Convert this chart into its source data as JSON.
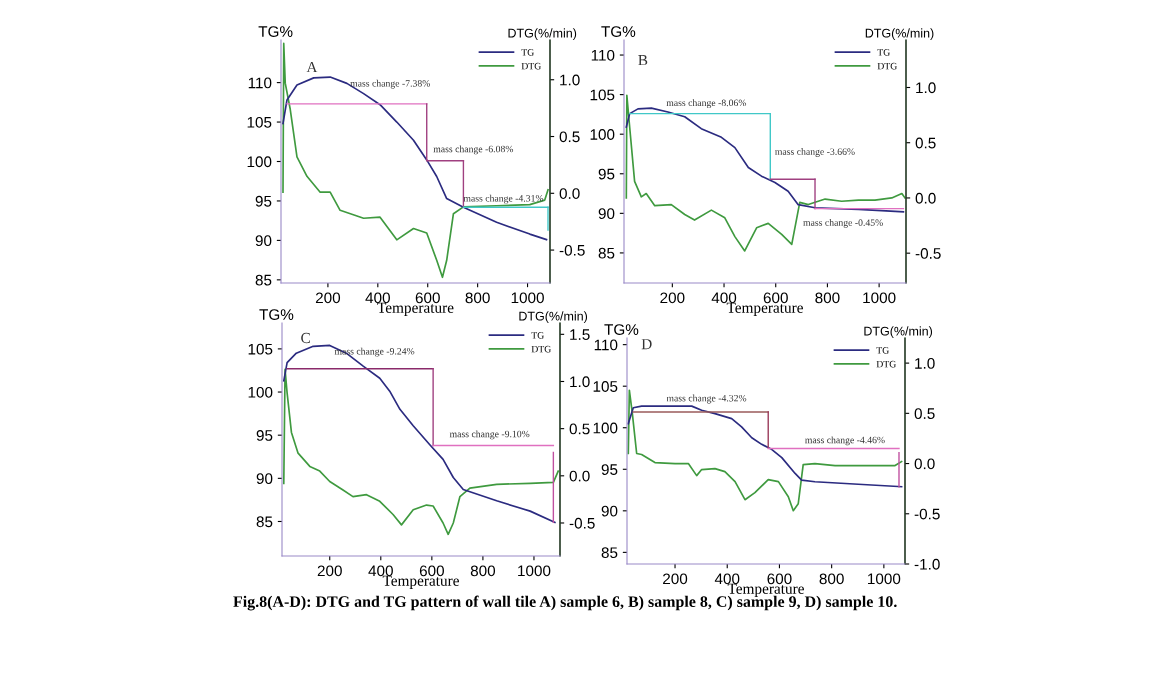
{
  "chart_data": [
    {
      "type": "line",
      "ylabel": "TG%",
      "y2label": "DTG(%/min)",
      "xlabel": "Temperature",
      "legend": "top right",
      "xlim": [
        12,
        1090
      ],
      "xticks": [
        200,
        400,
        600,
        800,
        1000
      ],
      "ylim": [
        84.6,
        115.4
      ],
      "yticks": [
        85,
        90,
        95,
        100,
        105,
        110
      ],
      "y2lim": [
        -0.79,
        1.35
      ],
      "y2ticks": [
        {
          "value": -0.5,
          "label": "-0.5"
        },
        {
          "value": 0,
          "label": "0.0"
        },
        {
          "value": 0.5,
          "label": "0.5"
        },
        {
          "value": 1,
          "label": "1.0"
        }
      ],
      "series": [
        {
          "name": "TG",
          "color": "#2b2b80",
          "x": [
            20,
            36,
            76,
            143,
            209,
            276,
            343,
            409,
            476,
            543,
            596,
            636,
            676,
            743,
            876,
            1009,
            1076
          ],
          "values": [
            104.8,
            107.8,
            109.7,
            110.6,
            110.7,
            109.9,
            108.6,
            107.2,
            105.0,
            102.7,
            100.2,
            98.1,
            95.3,
            94.2,
            92.3,
            90.8,
            90.1
          ]
        },
        {
          "name": "DTG",
          "color": "#3f9a3f",
          "axis": "y2",
          "x": [
            20,
            23,
            29,
            49,
            76,
            116,
            169,
            209,
            249,
            343,
            409,
            476,
            543,
            596,
            636,
            659,
            676,
            703,
            743,
            876,
            1009,
            1069,
            1082
          ],
          "values": [
            0.01,
            1.32,
            0.97,
            0.74,
            0.32,
            0.15,
            0.01,
            0.01,
            -0.15,
            -0.22,
            -0.21,
            -0.41,
            -0.31,
            -0.35,
            -0.59,
            -0.74,
            -0.59,
            -0.18,
            -0.12,
            -0.11,
            -0.1,
            -0.06,
            0.03
          ]
        },
        {
          "color": "#e070c0",
          "x": [
            36,
            596
          ],
          "values": [
            107.3,
            107.3
          ]
        },
        {
          "color": "#a04080",
          "x": [
            596,
            596
          ],
          "values": [
            107.3,
            100.2
          ]
        },
        {
          "color": "#a04080",
          "x": [
            596,
            743
          ],
          "values": [
            100.1,
            100.1
          ]
        },
        {
          "color": "#a04080",
          "x": [
            743,
            743
          ],
          "values": [
            100.1,
            94.2
          ]
        },
        {
          "color": "#40c8c8",
          "x": [
            743,
            1082
          ],
          "values": [
            94.2,
            94.2
          ]
        },
        {
          "color": "#40c8c8",
          "x": [
            1082,
            1082
          ],
          "values": [
            94.2,
            91.3
          ]
        }
      ],
      "annotations": [
        "A",
        "mass change -7.38%",
        "mass change -6.08%",
        "mass change -4.31%"
      ]
    },
    {
      "type": "line",
      "ylabel": "TG%",
      "y2label": "DTG(%/min)",
      "xlabel": "Temperature",
      "legend": "top right",
      "xlim": [
        13,
        1104
      ],
      "xticks": [
        200,
        400,
        600,
        800,
        1000
      ],
      "ylim": [
        81.2,
        111.9
      ],
      "yticks": [
        85,
        90,
        95,
        100,
        105,
        110
      ],
      "y2lim": [
        -0.77,
        1.43
      ],
      "y2ticks": [
        {
          "value": -0.5,
          "label": "-0.5"
        },
        {
          "value": 0,
          "label": "0.0"
        },
        {
          "value": 0.5,
          "label": "0.5"
        },
        {
          "value": 1,
          "label": "1.0"
        }
      ],
      "series": [
        {
          "name": "TG",
          "color": "#2b2b80",
          "x": [
            22,
            35,
            67,
            119,
            183,
            248,
            312,
            390,
            442,
            494,
            545,
            597,
            648,
            687,
            752,
            920,
            1094
          ],
          "values": [
            100.9,
            102.6,
            103.2,
            103.3,
            102.8,
            102.2,
            100.7,
            99.6,
            98.3,
            95.8,
            94.7,
            93.9,
            92.8,
            91.1,
            90.7,
            90.5,
            90.2
          ]
        },
        {
          "name": "DTG",
          "color": "#3f9a3f",
          "axis": "y2",
          "x": [
            22,
            24,
            35,
            54,
            80,
            99,
            132,
            196,
            248,
            286,
            351,
            403,
            442,
            480,
            526,
            571,
            623,
            662,
            693,
            726,
            791,
            855,
            920,
            984,
            1049,
            1088,
            1100
          ],
          "values": [
            0.0,
            0.93,
            0.64,
            0.15,
            0.01,
            0.04,
            -0.07,
            -0.06,
            -0.15,
            -0.2,
            -0.11,
            -0.18,
            -0.35,
            -0.48,
            -0.27,
            -0.23,
            -0.33,
            -0.42,
            -0.04,
            -0.06,
            -0.01,
            -0.03,
            -0.02,
            -0.02,
            0.0,
            0.04,
            0.0
          ]
        },
        {
          "color": "#40c8c8",
          "x": [
            35,
            579
          ],
          "values": [
            102.6,
            102.6
          ]
        },
        {
          "color": "#40c8c8",
          "x": [
            579,
            579
          ],
          "values": [
            102.6,
            94.3
          ]
        },
        {
          "color": "#a04080",
          "x": [
            579,
            752
          ],
          "values": [
            94.3,
            94.3
          ]
        },
        {
          "color": "#a04080",
          "x": [
            752,
            752
          ],
          "values": [
            94.3,
            90.6
          ]
        },
        {
          "color": "#e070c0",
          "x": [
            752,
            1094
          ],
          "values": [
            90.6,
            90.6
          ]
        }
      ],
      "annotations": [
        "B",
        "mass change -8.06%",
        "mass change -3.66%",
        "mass change -0.45%"
      ]
    },
    {
      "type": "line",
      "ylabel": "TG%",
      "y2label": "DTG(%/min)",
      "xlabel": "Temperature",
      "legend": "top right",
      "xlim": [
        13,
        1102
      ],
      "xticks": [
        200,
        400,
        600,
        800,
        1000
      ],
      "ylim": [
        81.0,
        108.0
      ],
      "yticks": [
        85,
        90,
        95,
        100,
        105
      ],
      "y2lim": [
        -0.85,
        1.62
      ],
      "y2ticks": [
        {
          "value": -0.5,
          "label": "-0.5"
        },
        {
          "value": 0,
          "label": "0.0"
        },
        {
          "value": 0.5,
          "label": "0.5"
        },
        {
          "value": 1,
          "label": "1.0"
        },
        {
          "value": 1.5,
          "label": "1.5"
        }
      ],
      "series": [
        {
          "name": "TG",
          "color": "#2b2b80",
          "x": [
            20,
            33,
            69,
            135,
            200,
            265,
            331,
            396,
            435,
            475,
            527,
            592,
            644,
            684,
            723,
            854,
            985,
            1082
          ],
          "values": [
            101.3,
            103.4,
            104.5,
            105.3,
            105.4,
            104.5,
            103.0,
            101.6,
            100.1,
            98.0,
            96.1,
            93.9,
            92.2,
            90.1,
            88.7,
            87.4,
            86.2,
            84.9
          ]
        },
        {
          "name": "DTG",
          "color": "#3f9a3f",
          "axis": "y2",
          "x": [
            20,
            25,
            33,
            50,
            76,
            122,
            161,
            200,
            252,
            291,
            344,
            396,
            448,
            481,
            527,
            579,
            605,
            644,
            664,
            684,
            710,
            749,
            854,
            985,
            1076,
            1095
          ],
          "values": [
            -0.08,
            1.13,
            0.88,
            0.46,
            0.24,
            0.1,
            0.05,
            -0.06,
            -0.15,
            -0.22,
            -0.2,
            -0.27,
            -0.41,
            -0.52,
            -0.36,
            -0.31,
            -0.32,
            -0.5,
            -0.62,
            -0.5,
            -0.22,
            -0.13,
            -0.09,
            -0.08,
            -0.07,
            0.05
          ]
        },
        {
          "color": "#8a2a6a",
          "x": [
            33,
            605
          ],
          "values": [
            102.7,
            102.7
          ]
        },
        {
          "color": "#a04080",
          "x": [
            605,
            605
          ],
          "values": [
            102.7,
            93.8
          ]
        },
        {
          "color": "#e070c0",
          "x": [
            605,
            1076
          ],
          "values": [
            93.8,
            93.8
          ]
        },
        {
          "color": "#c050a0",
          "x": [
            1076,
            1076
          ],
          "values": [
            93.0,
            84.9
          ]
        }
      ],
      "annotations": [
        "C",
        "mass change -9.24%",
        "mass change -9.10%"
      ]
    },
    {
      "type": "line",
      "ylabel": "TG%",
      "y2label": "DTG(%/min)",
      "xlabel": "Temperature",
      "legend": "top right",
      "xlim": [
        16,
        1081
      ],
      "xticks": [
        200,
        400,
        600,
        800,
        1000
      ],
      "ylim": [
        83.6,
        110.8
      ],
      "yticks": [
        85,
        90,
        95,
        100,
        105,
        110
      ],
      "y2lim": [
        -1.0,
        1.25
      ],
      "y2ticks": [
        {
          "value": -1,
          "label": "-1.0"
        },
        {
          "value": -0.5,
          "label": "-0.5"
        },
        {
          "value": 0,
          "label": "0.0"
        },
        {
          "value": 0.5,
          "label": "0.5"
        },
        {
          "value": 1,
          "label": "1.0"
        }
      ],
      "series": [
        {
          "name": "TG",
          "color": "#2b2b80",
          "x": [
            21,
            40,
            72,
            136,
            200,
            264,
            302,
            353,
            417,
            455,
            494,
            532,
            570,
            609,
            660,
            685,
            736,
            902,
            1068
          ],
          "values": [
            100.5,
            102.4,
            102.6,
            102.6,
            102.6,
            102.6,
            102.1,
            101.7,
            101.1,
            100.1,
            98.8,
            98.0,
            97.4,
            96.4,
            94.5,
            93.7,
            93.5,
            93.2,
            92.9
          ]
        },
        {
          "name": "DTG",
          "color": "#3f9a3f",
          "axis": "y2",
          "x": [
            21,
            25,
            36,
            53,
            72,
            123,
            200,
            251,
            283,
            302,
            353,
            391,
            430,
            468,
            506,
            557,
            596,
            634,
            653,
            672,
            691,
            736,
            813,
            877,
            966,
            1043,
            1068
          ],
          "values": [
            0.1,
            0.73,
            0.51,
            0.1,
            0.09,
            0.01,
            0.0,
            0.0,
            -0.12,
            -0.06,
            -0.05,
            -0.08,
            -0.18,
            -0.36,
            -0.29,
            -0.16,
            -0.18,
            -0.33,
            -0.47,
            -0.4,
            -0.01,
            0.0,
            -0.02,
            -0.02,
            -0.02,
            -0.02,
            0.02
          ]
        },
        {
          "color": "#9a5a5a",
          "x": [
            40,
            557
          ],
          "values": [
            101.9,
            101.9
          ]
        },
        {
          "color": "#9a3a5a",
          "x": [
            557,
            557
          ],
          "values": [
            101.9,
            97.6
          ]
        },
        {
          "color": "#e070c0",
          "x": [
            557,
            1058
          ],
          "values": [
            97.5,
            97.5
          ]
        },
        {
          "color": "#c050a0",
          "x": [
            1058,
            1058
          ],
          "values": [
            97.0,
            92.9
          ]
        }
      ],
      "annotations": [
        "D",
        "mass change -4.32%",
        "mass change -4.46%",
        "Fig.8(A-D): DTG and TG pattern of wall tile A) sample 6, B) sample 8, C) sample 9, D) sample 10."
      ]
    }
  ]
}
